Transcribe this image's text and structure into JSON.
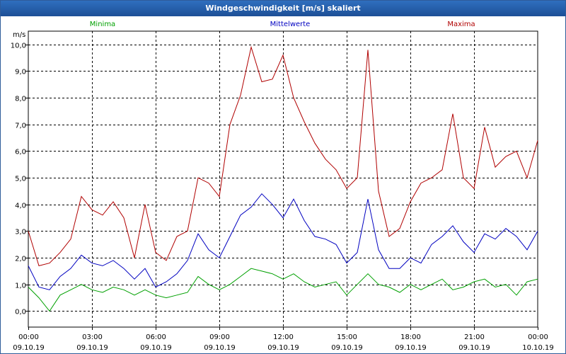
{
  "window": {
    "title": "Windgeschwindigkeit [m/s] skaliert"
  },
  "chart_data": {
    "type": "line",
    "title": "Windgeschwindigkeit [m/s] skaliert",
    "ylabel": "m/s",
    "xlabel": "",
    "ylim": [
      -0.6,
      10.5
    ],
    "xlim_hours": [
      0,
      24
    ],
    "grid": true,
    "legend_placement": "top",
    "y_ticks": [
      "0,0",
      "1,0",
      "2,0",
      "3,0",
      "4,0",
      "5,0",
      "6,0",
      "7,0",
      "8,0",
      "9,0",
      "10,0"
    ],
    "x_ticks": [
      {
        "time": "00:00",
        "date": "09.10.19"
      },
      {
        "time": "03:00",
        "date": "09.10.19"
      },
      {
        "time": "06:00",
        "date": "09.10.19"
      },
      {
        "time": "09:00",
        "date": "09.10.19"
      },
      {
        "time": "12:00",
        "date": "09.10.19"
      },
      {
        "time": "15:00",
        "date": "09.10.19"
      },
      {
        "time": "18:00",
        "date": "09.10.19"
      },
      {
        "time": "21:00",
        "date": "09.10.19"
      },
      {
        "time": "00:00",
        "date": "10.10.19"
      }
    ],
    "x_hours": [
      0,
      0.5,
      1,
      1.5,
      2,
      2.5,
      3,
      3.5,
      4,
      4.5,
      5,
      5.5,
      6,
      6.5,
      7,
      7.5,
      8,
      8.5,
      9,
      9.5,
      10,
      10.5,
      11,
      11.5,
      12,
      12.5,
      13,
      13.5,
      14,
      14.5,
      15,
      15.5,
      16,
      16.5,
      17,
      17.5,
      18,
      18.5,
      19,
      19.5,
      20,
      20.5,
      21,
      21.5,
      22,
      22.5,
      23,
      23.5,
      24
    ],
    "series": [
      {
        "name": "Minima",
        "color": "#00a000",
        "values": [
          0.9,
          0.5,
          0.0,
          0.6,
          0.8,
          1.0,
          0.8,
          0.7,
          0.9,
          0.8,
          0.6,
          0.8,
          0.6,
          0.5,
          0.6,
          0.7,
          1.3,
          1.0,
          0.8,
          1.0,
          1.3,
          1.6,
          1.5,
          1.4,
          1.2,
          1.4,
          1.1,
          0.9,
          1.0,
          1.1,
          0.6,
          1.0,
          1.4,
          1.0,
          0.9,
          0.7,
          1.0,
          0.8,
          1.0,
          1.2,
          0.8,
          0.9,
          1.1,
          1.2,
          0.9,
          1.0,
          0.6,
          1.1,
          1.2
        ]
      },
      {
        "name": "Mittelwerte",
        "color": "#0000c0",
        "values": [
          1.7,
          0.9,
          0.8,
          1.3,
          1.6,
          2.1,
          1.8,
          1.7,
          1.9,
          1.6,
          1.2,
          1.6,
          0.9,
          1.1,
          1.4,
          1.9,
          2.9,
          2.3,
          2.0,
          2.8,
          3.6,
          3.9,
          4.4,
          4.0,
          3.5,
          4.2,
          3.4,
          2.8,
          2.7,
          2.5,
          1.8,
          2.2,
          4.2,
          2.3,
          1.6,
          1.6,
          2.0,
          1.8,
          2.5,
          2.8,
          3.2,
          2.6,
          2.2,
          2.9,
          2.7,
          3.1,
          2.8,
          2.3,
          3.0
        ]
      },
      {
        "name": "Maxima",
        "color": "#b00000",
        "values": [
          3.0,
          1.7,
          1.8,
          2.2,
          2.7,
          4.3,
          3.8,
          3.6,
          4.1,
          3.5,
          2.0,
          4.0,
          2.2,
          1.9,
          2.8,
          3.0,
          5.0,
          4.8,
          4.3,
          7.0,
          8.1,
          9.9,
          8.6,
          8.7,
          9.6,
          8.0,
          7.1,
          6.3,
          5.7,
          5.3,
          4.6,
          5.0,
          9.8,
          4.5,
          2.8,
          3.1,
          4.1,
          4.8,
          5.0,
          5.3,
          7.4,
          5.0,
          4.6,
          6.9,
          5.4,
          5.8,
          6.0,
          5.0,
          6.4
        ]
      }
    ]
  }
}
